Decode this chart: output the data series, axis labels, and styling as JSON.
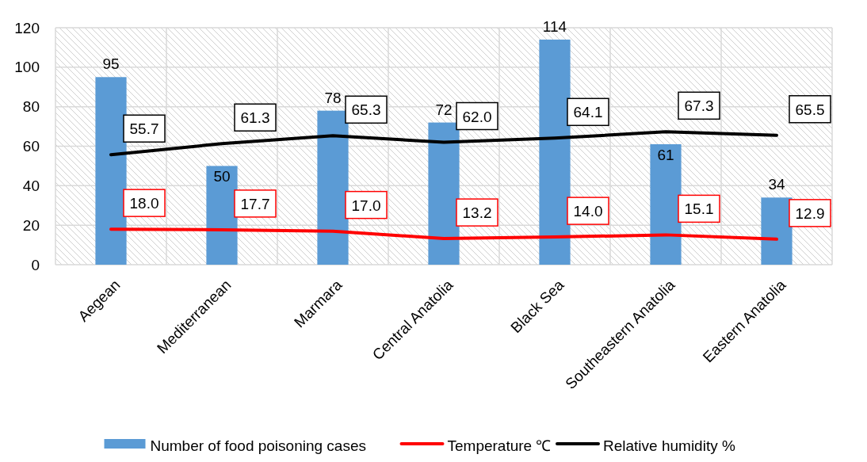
{
  "chart_data": {
    "type": "bar",
    "categories": [
      "Aegean",
      "Mediterranean",
      "Marmara",
      "Central Anatolia",
      "Black Sea",
      "Southeastern Anatolia",
      "Eastern Anatolia"
    ],
    "series": [
      {
        "name": "Number of food poisoning cases",
        "color": "#5b9bd5",
        "values": [
          95,
          50,
          78,
          72,
          114,
          61,
          34
        ],
        "value_labels": [
          "95",
          "50",
          "78",
          "72",
          "114",
          "61",
          "34"
        ]
      },
      {
        "name": "Temperature ℃",
        "type": "line",
        "color": "#ff0000",
        "values": [
          18.0,
          17.7,
          17.0,
          13.2,
          14.0,
          15.1,
          12.9
        ],
        "value_labels": [
          "18.0",
          "17.7",
          "17.0",
          "13.2",
          "14.0",
          "15.1",
          "12.9"
        ]
      },
      {
        "name": "Relative humidity %",
        "type": "line",
        "color": "#000000",
        "values": [
          55.7,
          61.3,
          65.3,
          62.0,
          64.1,
          67.3,
          65.5
        ],
        "value_labels": [
          "55.7",
          "61.3",
          "65.3",
          "62.0",
          "64.1",
          "67.3",
          "65.5"
        ]
      }
    ],
    "ylim": [
      0,
      120
    ],
    "yticks": [
      0,
      20,
      40,
      60,
      80,
      100,
      120
    ],
    "grid": true,
    "legend": "bottom",
    "marker": "none",
    "line_style": "solid"
  }
}
